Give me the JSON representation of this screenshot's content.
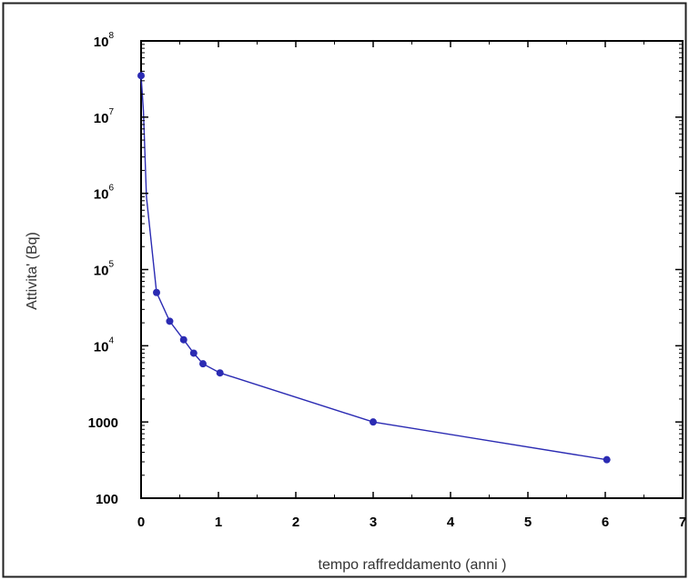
{
  "chart_data": {
    "type": "line",
    "xlabel": "tempo raffreddamento (anni )",
    "ylabel": "Attivita' (Bq)",
    "xlim": [
      0,
      7
    ],
    "ylim": [
      100,
      100000000
    ],
    "yscale": "log",
    "x_ticks": [
      "0",
      "1",
      "2",
      "3",
      "4",
      "5",
      "6",
      "7"
    ],
    "y_ticks": [
      {
        "base": "100",
        "exp": ""
      },
      {
        "base": "1000",
        "exp": ""
      },
      {
        "base": "10",
        "exp": "4"
      },
      {
        "base": "10",
        "exp": "5"
      },
      {
        "base": "10",
        "exp": "6"
      },
      {
        "base": "10",
        "exp": "7"
      },
      {
        "base": "10",
        "exp": "8"
      }
    ],
    "grid": false,
    "legend": "none",
    "series": [
      {
        "x": [
          0,
          0.03,
          0.07,
          0.2,
          0.37,
          0.55,
          0.68,
          0.8,
          1.02,
          3.0,
          6.02
        ],
        "y": [
          35000000,
          12000000,
          900000,
          50000,
          21000,
          12000,
          8000,
          5800,
          4400,
          1000,
          320
        ],
        "color": "#2b2bb3",
        "marker_indices": [
          0,
          3,
          4,
          5,
          6,
          7,
          8,
          9,
          10
        ]
      }
    ]
  }
}
